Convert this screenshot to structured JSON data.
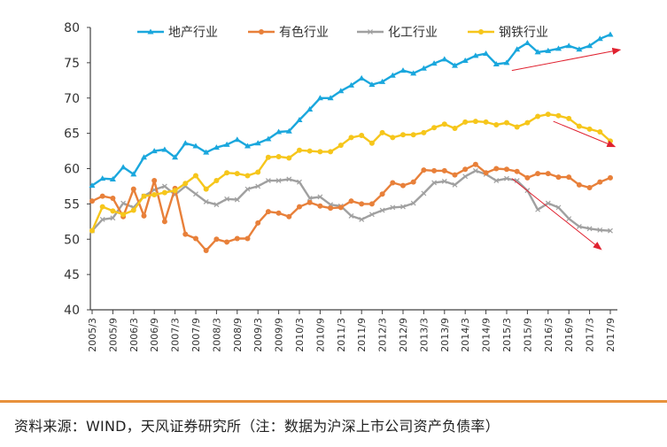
{
  "chart_data": {
    "type": "line",
    "title": "",
    "xlabel": "",
    "ylabel": "",
    "ylim": [
      40,
      80
    ],
    "yticks": [
      "40",
      "45",
      "50",
      "55",
      "60",
      "65",
      "70",
      "75",
      "80"
    ],
    "xtick_labels": [
      "2005/3",
      "2005/9",
      "2006/3",
      "2006/9",
      "2007/3",
      "2007/9",
      "2008/3",
      "2008/9",
      "2009/3",
      "2009/9",
      "2010/3",
      "2010/9",
      "2011/3",
      "2011/9",
      "2012/3",
      "2012/9",
      "2013/3",
      "2013/9",
      "2014/3",
      "2014/9",
      "2015/3",
      "2015/9",
      "2016/3",
      "2016/9",
      "2017/3",
      "2017/9"
    ],
    "legend_position": "top",
    "grid": false,
    "series": [
      {
        "name": "地产行业",
        "color": "#1aa7dd",
        "marker": "triangle",
        "values": [
          57.6,
          58.6,
          58.5,
          60.2,
          59.2,
          61.6,
          62.5,
          62.7,
          61.6,
          63.6,
          63.2,
          62.3,
          63.0,
          63.4,
          64.1,
          63.2,
          63.6,
          64.2,
          65.2,
          65.3,
          66.9,
          68.4,
          70.0,
          70.0,
          71.0,
          71.8,
          72.8,
          71.9,
          72.3,
          73.2,
          73.9,
          73.5,
          74.2,
          74.9,
          75.5,
          74.6,
          75.3,
          76.0,
          76.3,
          74.8,
          75.0,
          76.9,
          77.8,
          76.5,
          76.7,
          77.0,
          77.4,
          76.9,
          77.4,
          78.4,
          79.0
        ]
      },
      {
        "name": "有色行业",
        "color": "#e8803a",
        "marker": "circle",
        "values": [
          55.4,
          56.1,
          55.8,
          53.2,
          57.1,
          53.3,
          58.3,
          52.5,
          57.2,
          50.7,
          50.1,
          48.4,
          50.0,
          49.6,
          50.1,
          50.1,
          52.3,
          53.9,
          53.7,
          53.2,
          54.6,
          55.2,
          54.7,
          54.4,
          54.5,
          55.4,
          55.0,
          55.0,
          56.4,
          58.0,
          57.6,
          58.1,
          59.8,
          59.7,
          59.7,
          59.1,
          59.9,
          60.6,
          59.4,
          60.0,
          59.9,
          59.6,
          58.7,
          59.3,
          59.3,
          58.8,
          58.8,
          57.7,
          57.3,
          58.1,
          58.7
        ]
      },
      {
        "name": "化工行业",
        "color": "#a0a0a0",
        "marker": "cross",
        "values": [
          51.2,
          52.8,
          53.0,
          55.1,
          54.5,
          56.1,
          57.0,
          57.5,
          56.3,
          57.5,
          56.4,
          55.3,
          54.9,
          55.7,
          55.6,
          57.1,
          57.5,
          58.3,
          58.3,
          58.5,
          58.1,
          55.8,
          56.0,
          54.9,
          54.7,
          53.3,
          52.8,
          53.5,
          54.1,
          54.5,
          54.6,
          55.1,
          56.5,
          58.0,
          58.2,
          57.7,
          58.9,
          59.7,
          59.2,
          58.3,
          58.6,
          58.3,
          56.9,
          54.2,
          55.1,
          54.5,
          52.9,
          51.8,
          51.5,
          51.3,
          51.2
        ]
      },
      {
        "name": "钢铁行业",
        "color": "#f6c61b",
        "marker": "circle",
        "values": [
          51.2,
          54.6,
          54.0,
          53.5,
          54.1,
          56.1,
          56.3,
          56.6,
          56.9,
          57.9,
          59.0,
          57.1,
          58.3,
          59.4,
          59.3,
          59.0,
          59.5,
          61.6,
          61.7,
          61.5,
          62.6,
          62.5,
          62.4,
          62.4,
          63.3,
          64.4,
          64.7,
          63.6,
          65.1,
          64.4,
          64.8,
          64.8,
          65.1,
          65.8,
          66.3,
          65.7,
          66.6,
          66.7,
          66.6,
          66.2,
          66.5,
          65.9,
          66.5,
          67.4,
          67.7,
          67.5,
          67.1,
          66.0,
          65.6,
          65.2,
          63.9
        ]
      }
    ],
    "annotations": [
      {
        "kind": "arrow",
        "color": "#e0212f",
        "from": [
          40.5,
          73.9
        ],
        "to": [
          50.8,
          76.8
        ]
      },
      {
        "kind": "arrow",
        "color": "#e0212f",
        "from": [
          44.5,
          66.7
        ],
        "to": [
          50.3,
          63.2
        ]
      },
      {
        "kind": "arrow",
        "color": "#e0212f",
        "from": [
          40.5,
          58.6
        ],
        "to": [
          49.0,
          48.7
        ]
      }
    ]
  },
  "footer": {
    "source_text": "资料来源：WIND，天风证券研究所（注：数据为沪深上市公司资产负债率）"
  }
}
